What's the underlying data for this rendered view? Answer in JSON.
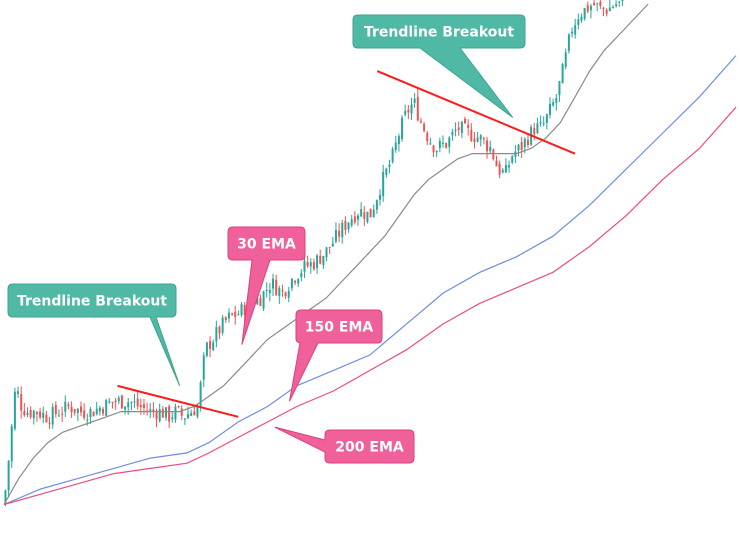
{
  "chart_data": {
    "type": "line",
    "title": "",
    "xlabel": "",
    "ylabel": "",
    "grid": false,
    "xlim": [
      0,
      100
    ],
    "ylim": [
      0,
      100
    ],
    "colors": {
      "up_candle": "#26a69a",
      "down_candle": "#ef5350",
      "ema30": "#8a8a8a",
      "ema150": "#6d8fe0",
      "ema200": "#ee4d7b",
      "trendline": "#ff1a1a",
      "callout_green": "#4fb9a6",
      "callout_pink": "#f0609b"
    },
    "price": [
      [
        0,
        3
      ],
      [
        0.8,
        14
      ],
      [
        1.6,
        26
      ],
      [
        2.4,
        22
      ],
      [
        3.2,
        21
      ],
      [
        4.5,
        21
      ],
      [
        6,
        20
      ],
      [
        7.5,
        21
      ],
      [
        9,
        22
      ],
      [
        10.5,
        21
      ],
      [
        12,
        21
      ],
      [
        13.5,
        22
      ],
      [
        15,
        23
      ],
      [
        17,
        23
      ],
      [
        18.5,
        22
      ],
      [
        20,
        21
      ],
      [
        21.5,
        21
      ],
      [
        22.5,
        20
      ],
      [
        23.5,
        21
      ],
      [
        24.5,
        20
      ],
      [
        25.5,
        21
      ],
      [
        26.5,
        22
      ],
      [
        27.5,
        33
      ],
      [
        29,
        36
      ],
      [
        30.5,
        39
      ],
      [
        32,
        40
      ],
      [
        33.5,
        42
      ],
      [
        35,
        43
      ],
      [
        36.5,
        46
      ],
      [
        38,
        44
      ],
      [
        39.5,
        47
      ],
      [
        41,
        49
      ],
      [
        42.5,
        50
      ],
      [
        44,
        52
      ],
      [
        45.5,
        55
      ],
      [
        47,
        58
      ],
      [
        48.5,
        60
      ],
      [
        50,
        59
      ],
      [
        51.5,
        65
      ],
      [
        53,
        70
      ],
      [
        54,
        75
      ],
      [
        55,
        79
      ],
      [
        56,
        81
      ],
      [
        57,
        77
      ],
      [
        58,
        74
      ],
      [
        59,
        72
      ],
      [
        60.5,
        73
      ],
      [
        62,
        76
      ],
      [
        63.5,
        75
      ],
      [
        65,
        74
      ],
      [
        66.5,
        72
      ],
      [
        67.5,
        68
      ],
      [
        68.5,
        67
      ],
      [
        69.5,
        71
      ],
      [
        70.5,
        72
      ],
      [
        71.5,
        74
      ],
      [
        72.5,
        76
      ],
      [
        73.5,
        76
      ],
      [
        74.5,
        79
      ],
      [
        75.5,
        82
      ],
      [
        76.5,
        88
      ],
      [
        77.5,
        95
      ],
      [
        78.5,
        98
      ],
      [
        79.5,
        99
      ],
      [
        80.5,
        100
      ],
      [
        81.5,
        99
      ],
      [
        82.5,
        99
      ],
      [
        83.5,
        100
      ],
      [
        84.5,
        100
      ]
    ],
    "series": [
      {
        "label": "30 EMA",
        "color": "#8a8a8a",
        "points": [
          [
            0,
            3
          ],
          [
            2,
            8
          ],
          [
            4,
            12
          ],
          [
            6,
            15
          ],
          [
            8,
            17
          ],
          [
            10,
            18
          ],
          [
            12,
            19
          ],
          [
            14,
            20
          ],
          [
            16,
            21
          ],
          [
            18,
            21
          ],
          [
            20,
            21
          ],
          [
            22,
            21
          ],
          [
            24,
            21
          ],
          [
            26,
            22
          ],
          [
            28,
            24
          ],
          [
            30,
            26
          ],
          [
            32,
            29
          ],
          [
            34,
            32
          ],
          [
            36,
            35
          ],
          [
            38,
            37
          ],
          [
            40,
            39
          ],
          [
            42,
            41
          ],
          [
            44,
            43
          ],
          [
            46,
            46
          ],
          [
            48,
            49
          ],
          [
            50,
            52
          ],
          [
            52,
            55
          ],
          [
            54,
            59
          ],
          [
            56,
            63
          ],
          [
            58,
            66
          ],
          [
            60,
            68
          ],
          [
            62,
            70
          ],
          [
            64,
            71
          ],
          [
            66,
            71
          ],
          [
            68,
            71
          ],
          [
            70,
            71
          ],
          [
            72,
            72
          ],
          [
            74,
            74
          ],
          [
            76,
            77
          ],
          [
            78,
            82
          ],
          [
            80,
            87
          ],
          [
            82,
            91
          ],
          [
            84,
            94
          ],
          [
            86,
            97
          ],
          [
            88,
            100
          ]
        ]
      },
      {
        "label": "150 EMA",
        "color": "#6d8fe0",
        "points": [
          [
            0,
            3
          ],
          [
            5,
            6
          ],
          [
            10,
            8
          ],
          [
            15,
            10
          ],
          [
            20,
            12
          ],
          [
            25,
            13
          ],
          [
            28,
            15
          ],
          [
            32,
            19
          ],
          [
            36,
            22
          ],
          [
            40,
            26
          ],
          [
            45,
            29
          ],
          [
            50,
            32
          ],
          [
            55,
            38
          ],
          [
            60,
            44
          ],
          [
            65,
            48
          ],
          [
            70,
            51
          ],
          [
            75,
            55
          ],
          [
            80,
            61
          ],
          [
            85,
            68
          ],
          [
            90,
            75
          ],
          [
            95,
            82
          ],
          [
            100,
            90
          ]
        ]
      },
      {
        "label": "200 EMA",
        "color": "#ee4d7b",
        "points": [
          [
            0,
            3
          ],
          [
            5,
            5
          ],
          [
            10,
            7
          ],
          [
            15,
            9
          ],
          [
            20,
            10
          ],
          [
            25,
            11
          ],
          [
            28,
            13
          ],
          [
            32,
            16
          ],
          [
            36,
            19
          ],
          [
            40,
            22
          ],
          [
            45,
            25
          ],
          [
            50,
            29
          ],
          [
            55,
            33
          ],
          [
            60,
            38
          ],
          [
            65,
            42
          ],
          [
            70,
            45
          ],
          [
            75,
            48
          ],
          [
            80,
            53
          ],
          [
            85,
            59
          ],
          [
            90,
            66
          ],
          [
            95,
            72
          ],
          [
            100,
            80
          ]
        ]
      }
    ],
    "trendlines": [
      {
        "from": [
          15.5,
          26
        ],
        "to": [
          32,
          20
        ]
      },
      {
        "from": [
          51,
          87
        ],
        "to": [
          78,
          71
        ]
      }
    ],
    "annotations": [
      {
        "text": "Trendline Breakout",
        "color": "#4fb9a6",
        "target": [
          24,
          26
        ]
      },
      {
        "text": "Trendline Breakout",
        "color": "#4fb9a6",
        "target": [
          69.5,
          78
        ]
      },
      {
        "text": "30 EMA",
        "color": "#f0609b",
        "target": [
          32.5,
          34
        ]
      },
      {
        "text": "150 EMA",
        "color": "#f0609b",
        "target": [
          39,
          23
        ]
      },
      {
        "text": "200 EMA",
        "color": "#f0609b",
        "target": [
          37,
          18
        ]
      }
    ]
  }
}
